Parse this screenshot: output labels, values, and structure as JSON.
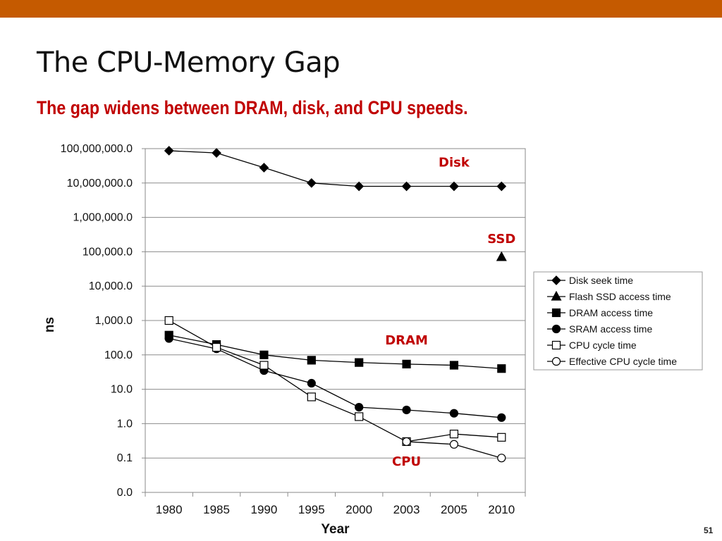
{
  "slide": {
    "title": "The CPU-Memory Gap",
    "subtitle": "The gap widens between DRAM, disk, and CPU speeds.",
    "page_number": "51",
    "colors": {
      "top_bar": "#c55a00",
      "subtitle": "#c00000",
      "annotation": "#c00000"
    }
  },
  "chart_data": {
    "type": "line",
    "title": "",
    "xlabel": "Year",
    "ylabel": "ns",
    "yscale": "log",
    "grid": true,
    "legend_position": "right",
    "categories": [
      "1980",
      "1985",
      "1990",
      "1995",
      "2000",
      "2003",
      "2005",
      "2010"
    ],
    "y_ticks": [
      {
        "value": 0.01,
        "label": "0.0"
      },
      {
        "value": 0.1,
        "label": "0.1"
      },
      {
        "value": 1,
        "label": "1.0"
      },
      {
        "value": 10,
        "label": "10.0"
      },
      {
        "value": 100,
        "label": "100.0"
      },
      {
        "value": 1000,
        "label": "1,000.0"
      },
      {
        "value": 10000,
        "label": "10,000.0"
      },
      {
        "value": 100000,
        "label": "100,000.0"
      },
      {
        "value": 1000000,
        "label": "1,000,000.0"
      },
      {
        "value": 10000000,
        "label": "10,000,000.0"
      },
      {
        "value": 100000000,
        "label": "100,000,000.0"
      }
    ],
    "ylim": [
      0.01,
      100000000
    ],
    "series": [
      {
        "name": "Disk seek time",
        "marker": "diamond",
        "fill": "#000000",
        "values": [
          87000000,
          75000000,
          28000000,
          10000000,
          8000000,
          8000000,
          8000000,
          8000000
        ]
      },
      {
        "name": "Flash SSD access time",
        "marker": "triangle",
        "fill": "#000000",
        "values": [
          null,
          null,
          null,
          null,
          null,
          null,
          null,
          70000
        ]
      },
      {
        "name": "DRAM access time",
        "marker": "square",
        "fill": "#000000",
        "values": [
          375,
          200,
          100,
          70,
          60,
          54,
          50,
          40
        ]
      },
      {
        "name": "SRAM access time",
        "marker": "circle",
        "fill": "#000000",
        "values": [
          300,
          150,
          35,
          15,
          3,
          2.5,
          2,
          1.5
        ]
      },
      {
        "name": "CPU cycle time",
        "marker": "square",
        "fill": "#ffffff",
        "values": [
          1000,
          166,
          50,
          6,
          1.6,
          0.3,
          0.5,
          0.4
        ]
      },
      {
        "name": "Effective CPU cycle time",
        "marker": "circle",
        "fill": "#ffffff",
        "values": [
          null,
          null,
          null,
          null,
          null,
          0.3,
          0.25,
          0.1
        ]
      }
    ],
    "annotations": [
      {
        "text": "Disk",
        "year": "2005",
        "value": 30000000
      },
      {
        "text": "SSD",
        "year": "2010",
        "value": 180000
      },
      {
        "text": "DRAM",
        "year": "2003",
        "value": 200
      },
      {
        "text": "CPU",
        "year": "2003",
        "value": 0.06
      }
    ]
  }
}
